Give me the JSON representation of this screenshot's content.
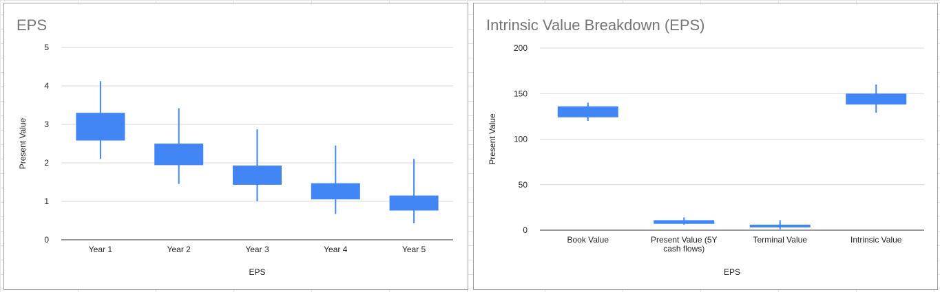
{
  "chart_data": [
    {
      "type": "candlestick",
      "title": "EPS",
      "xlabel": "EPS",
      "ylabel": "Present Value",
      "ylim": [
        0,
        5
      ],
      "yticks": [
        0,
        1,
        2,
        3,
        4,
        5
      ],
      "grid": true,
      "legend": "none",
      "color": "#4285f4",
      "categories": [
        "Year 1",
        "Year 2",
        "Year 3",
        "Year 4",
        "Year 5"
      ],
      "low": [
        2.1,
        1.45,
        1.0,
        0.67,
        0.43
      ],
      "open": [
        2.58,
        1.94,
        1.43,
        1.05,
        0.76
      ],
      "close": [
        3.3,
        2.5,
        1.93,
        1.47,
        1.15
      ],
      "high": [
        4.12,
        3.42,
        2.87,
        2.45,
        2.1
      ]
    },
    {
      "type": "candlestick",
      "title": "Intrinsic Value Breakdown (EPS)",
      "xlabel": "EPS",
      "ylabel": "Present Value",
      "ylim": [
        0,
        200
      ],
      "yticks": [
        0,
        50,
        100,
        150,
        200
      ],
      "grid": true,
      "legend": "none",
      "color": "#4285f4",
      "categories": [
        "Book Value",
        "Present Value (5Y\ncash flows)",
        "Terminal Value",
        "Intrinsic Value"
      ],
      "low": [
        120,
        6,
        1,
        129
      ],
      "open": [
        124,
        7,
        3,
        138
      ],
      "close": [
        136,
        11,
        6,
        150
      ],
      "high": [
        140,
        14,
        11,
        160
      ]
    }
  ]
}
